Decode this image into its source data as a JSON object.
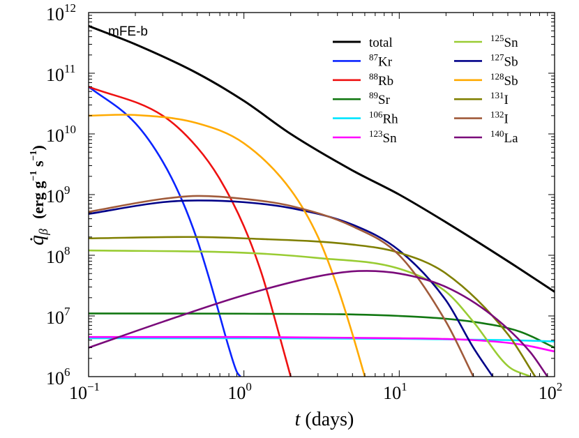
{
  "chart_data": {
    "type": "line",
    "panel_label": "mFE-b",
    "xlabel": {
      "var": "t",
      "rest": " (days)"
    },
    "ylabel": {
      "var": "q̇",
      "sub": "β",
      "units": "(erg g",
      "u1": "−1",
      "mid": " s",
      "u2": "−1",
      "close": ")"
    },
    "xscale": "log",
    "yscale": "log",
    "xlim": [
      0.1,
      100
    ],
    "ylim": [
      1000000,
      1000000000000
    ],
    "x_ticks": [
      {
        "value": 0.1,
        "base": "10",
        "exp": "−1"
      },
      {
        "value": 1,
        "base": "10",
        "exp": "0"
      },
      {
        "value": 10,
        "base": "10",
        "exp": "1"
      },
      {
        "value": 100,
        "base": "10",
        "exp": "2"
      }
    ],
    "y_ticks": [
      {
        "value": 1000000,
        "base": "10",
        "exp": "6"
      },
      {
        "value": 10000000,
        "base": "10",
        "exp": "7"
      },
      {
        "value": 100000000,
        "base": "10",
        "exp": "8"
      },
      {
        "value": 1000000000,
        "base": "10",
        "exp": "9"
      },
      {
        "value": 10000000000,
        "base": "10",
        "exp": "10"
      },
      {
        "value": 100000000000,
        "base": "10",
        "exp": "11"
      },
      {
        "value": 1000000000000,
        "base": "10",
        "exp": "12"
      }
    ],
    "legend_position": "top-right",
    "series": [
      {
        "name": "total",
        "sup": "",
        "color": "#000000",
        "x": [
          0.1,
          0.2,
          0.5,
          1,
          2,
          5,
          10,
          20,
          50,
          100
        ],
        "y": [
          600000000000.0,
          300000000000.0,
          100000000000.0,
          35000000000.0,
          10000000000.0,
          2500000000.0,
          1000000000.0,
          350000000.0,
          80000000.0,
          25000000.0
        ]
      },
      {
        "name": "Kr",
        "sup": "87",
        "color": "#0a24ff",
        "x": [
          0.1,
          0.2,
          0.3,
          0.4,
          0.5,
          0.6,
          0.7,
          0.8,
          0.9,
          0.95
        ],
        "y": [
          60000000000.0,
          15000000000.0,
          3500000000.0,
          800000000.0,
          180000000.0,
          40000000.0,
          10000000.0,
          3000000.0,
          1200000.0,
          1000000.0
        ]
      },
      {
        "name": "Rb",
        "sup": "88",
        "color": "#ee1111",
        "x": [
          0.1,
          0.3,
          0.5,
          0.7,
          1,
          1.3,
          1.6,
          2.0
        ],
        "y": [
          60000000000.0,
          20000000000.0,
          6000000000.0,
          1800000000.0,
          300000000.0,
          50000000.0,
          8000000.0,
          1000000.0
        ]
      },
      {
        "name": "Sr",
        "sup": "89",
        "color": "#117711",
        "x": [
          0.1,
          1,
          10,
          30,
          60,
          100
        ],
        "y": [
          11000000.0,
          10900000.0,
          10000000.0,
          8000000.0,
          5500000.0,
          3000000.0
        ]
      },
      {
        "name": "Rh",
        "sup": "106",
        "color": "#00e5ff",
        "x": [
          0.1,
          1,
          10,
          50,
          100
        ],
        "y": [
          4300000.0,
          4300000.0,
          4200000.0,
          4000000.0,
          3800000.0
        ]
      },
      {
        "name": "Sn",
        "sup": "123",
        "color": "#ff00ff",
        "x": [
          0.1,
          1,
          10,
          30,
          60,
          100
        ],
        "y": [
          4500000.0,
          4500000.0,
          4300000.0,
          4000000.0,
          3400000.0,
          2600000.0
        ]
      },
      {
        "name": "Sn",
        "sup": "125",
        "color": "#99cc33",
        "x": [
          0.1,
          1,
          3,
          10,
          20,
          30,
          50,
          70
        ],
        "y": [
          120000000.0,
          110000000.0,
          90000000.0,
          60000000.0,
          25000000.0,
          8000000.0,
          1500000.0,
          1000000.0
        ]
      },
      {
        "name": "Sb",
        "sup": "127",
        "color": "#000088",
        "x": [
          0.1,
          0.3,
          0.5,
          1,
          2,
          5,
          10,
          20,
          30,
          40
        ],
        "y": [
          480000000.0,
          750000000.0,
          800000000.0,
          750000000.0,
          600000000.0,
          320000000.0,
          120000000.0,
          18000000.0,
          3000000.0,
          1000000.0
        ]
      },
      {
        "name": "Sb",
        "sup": "128",
        "color": "#ffaa00",
        "x": [
          0.1,
          0.2,
          0.5,
          1,
          2,
          3,
          4,
          5,
          6
        ],
        "y": [
          20000000000.0,
          20500000000.0,
          15000000000.0,
          7000000000.0,
          1200000000.0,
          200000000.0,
          30000000.0,
          5000000.0,
          1000000.0
        ]
      },
      {
        "name": "I",
        "sup": "131",
        "color": "#7f7f00",
        "x": [
          0.1,
          0.5,
          1,
          5,
          10,
          20,
          50,
          75
        ],
        "y": [
          190000000.0,
          200000000.0,
          190000000.0,
          150000000.0,
          110000000.0,
          50000000.0,
          5000000.0,
          1000000.0
        ]
      },
      {
        "name": "I",
        "sup": "132",
        "color": "#a05a3a",
        "x": [
          0.1,
          0.3,
          0.5,
          1,
          2,
          5,
          10,
          20,
          30
        ],
        "y": [
          520000000.0,
          850000000.0,
          950000000.0,
          850000000.0,
          650000000.0,
          300000000.0,
          100000000.0,
          8000000.0,
          1000000.0
        ]
      },
      {
        "name": "La",
        "sup": "140",
        "color": "#7a0a7a",
        "x": [
          0.1,
          0.3,
          1,
          3,
          5.5,
          10,
          20,
          40,
          70,
          90
        ],
        "y": [
          3000000.0,
          8000000.0,
          22000000.0,
          45000000.0,
          55000000.0,
          50000000.0,
          30000000.0,
          10000000.0,
          2500000.0,
          1000000.0
        ]
      }
    ]
  }
}
